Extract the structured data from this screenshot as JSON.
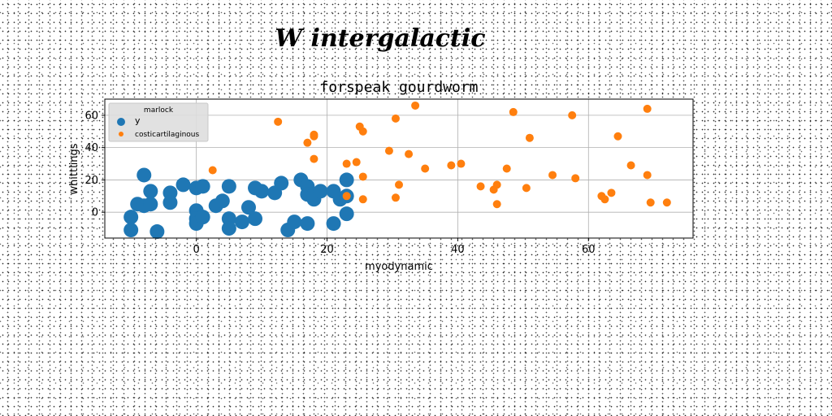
{
  "figure": {
    "suptitle": "W intergalactic"
  },
  "chart_data": {
    "type": "scatter",
    "title": "forspeak gourdworm",
    "xlabel": "myodynamic",
    "ylabel": "whittlings",
    "xlim": [
      -14,
      76
    ],
    "ylim": [
      -16,
      70
    ],
    "xticks": [
      0,
      20,
      40,
      60
    ],
    "yticks": [
      0,
      20,
      40,
      60
    ],
    "grid": true,
    "legend": {
      "title": "marlock",
      "position": "top-left"
    },
    "series": [
      {
        "name": "y",
        "color": "#1f77b4",
        "marker_size": 9,
        "points": [
          [
            -10,
            -3
          ],
          [
            -10,
            -11
          ],
          [
            -9,
            5
          ],
          [
            -8,
            23
          ],
          [
            -8,
            4
          ],
          [
            -7,
            13
          ],
          [
            -7,
            5
          ],
          [
            -6,
            -12
          ],
          [
            -4,
            12
          ],
          [
            -4,
            6
          ],
          [
            -2,
            17
          ],
          [
            0,
            15
          ],
          [
            0,
            1
          ],
          [
            0,
            -4
          ],
          [
            0,
            -7
          ],
          [
            1,
            16
          ],
          [
            1,
            -3
          ],
          [
            3,
            4
          ],
          [
            4,
            7
          ],
          [
            5,
            16
          ],
          [
            5,
            -4
          ],
          [
            5,
            -10
          ],
          [
            7,
            -6
          ],
          [
            8,
            3
          ],
          [
            9,
            15
          ],
          [
            9,
            -4
          ],
          [
            10,
            13
          ],
          [
            12,
            12
          ],
          [
            13,
            18
          ],
          [
            14,
            -11
          ],
          [
            15,
            -6
          ],
          [
            16,
            20
          ],
          [
            17,
            16
          ],
          [
            17,
            -7
          ],
          [
            17,
            11
          ],
          [
            18,
            8
          ],
          [
            18,
            11
          ],
          [
            19,
            13
          ],
          [
            21,
            13
          ],
          [
            21,
            -7
          ],
          [
            22,
            8
          ],
          [
            23,
            20
          ],
          [
            23,
            10
          ],
          [
            23,
            -1
          ]
        ]
      },
      {
        "name": "costicartilaginous",
        "color": "#ff7f0e",
        "marker_size": 5,
        "points": [
          [
            2.5,
            26
          ],
          [
            12.5,
            56
          ],
          [
            17,
            43
          ],
          [
            18,
            48
          ],
          [
            18,
            47
          ],
          [
            18,
            33
          ],
          [
            23,
            30
          ],
          [
            23,
            10
          ],
          [
            24.5,
            31
          ],
          [
            25,
            53
          ],
          [
            25.5,
            50
          ],
          [
            25.5,
            22
          ],
          [
            25.5,
            8
          ],
          [
            29.5,
            38
          ],
          [
            30.5,
            58
          ],
          [
            30.5,
            9
          ],
          [
            31,
            17
          ],
          [
            32.5,
            36
          ],
          [
            33.5,
            66
          ],
          [
            35,
            27
          ],
          [
            39,
            29
          ],
          [
            40.5,
            30
          ],
          [
            43.5,
            16
          ],
          [
            45.5,
            14
          ],
          [
            46,
            5
          ],
          [
            46,
            17
          ],
          [
            47.5,
            27
          ],
          [
            48.5,
            62
          ],
          [
            50.5,
            15
          ],
          [
            51,
            46
          ],
          [
            54.5,
            23
          ],
          [
            57.5,
            60
          ],
          [
            58,
            21
          ],
          [
            62,
            10
          ],
          [
            62.5,
            8
          ],
          [
            63.5,
            12
          ],
          [
            64.5,
            47
          ],
          [
            66.5,
            29
          ],
          [
            69,
            23
          ],
          [
            69,
            64
          ],
          [
            69.5,
            6
          ],
          [
            72,
            6
          ]
        ]
      }
    ]
  }
}
